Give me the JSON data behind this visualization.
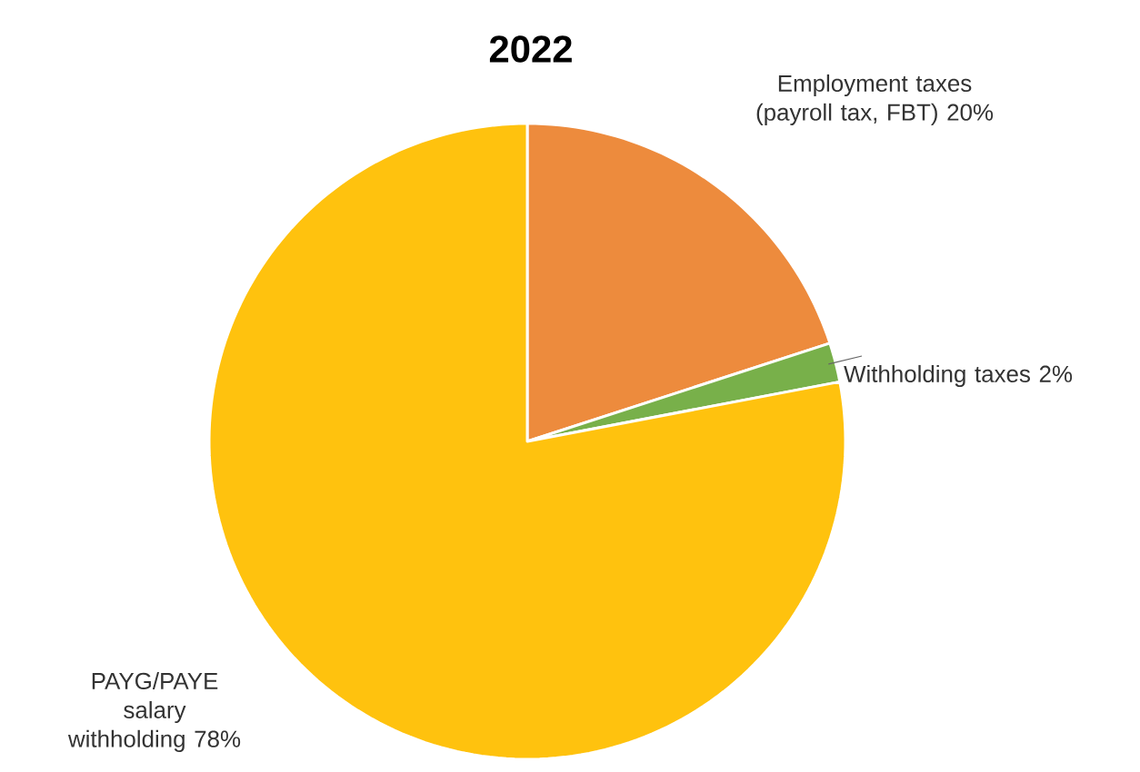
{
  "chart_data": {
    "type": "pie",
    "title": "2022",
    "categories": [
      "Employment taxes (payroll tax, FBT)",
      "Withholding taxes",
      "PAYG/PAYE salary withholding"
    ],
    "values": [
      20,
      2,
      78
    ],
    "value_labels": [
      "20%",
      "2%",
      "78%"
    ],
    "colors": [
      "#ed8b3d",
      "#78b04a",
      "#ffc20e"
    ]
  }
}
